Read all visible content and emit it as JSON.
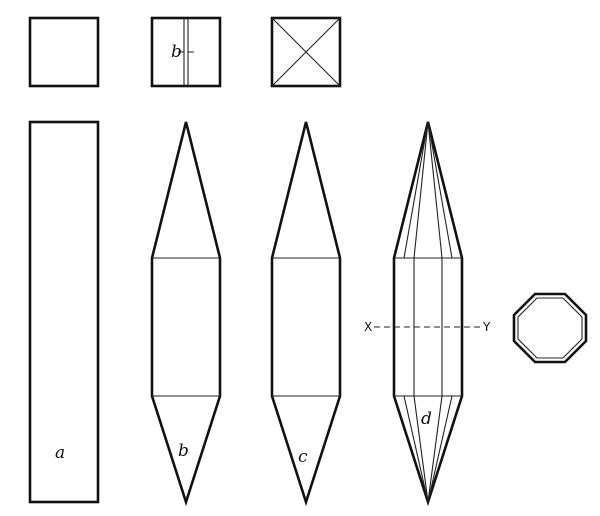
{
  "labels": {
    "a": "a",
    "b": "b",
    "c": "c",
    "d": "d",
    "small_b": "b",
    "x": "X",
    "y": "Y"
  }
}
